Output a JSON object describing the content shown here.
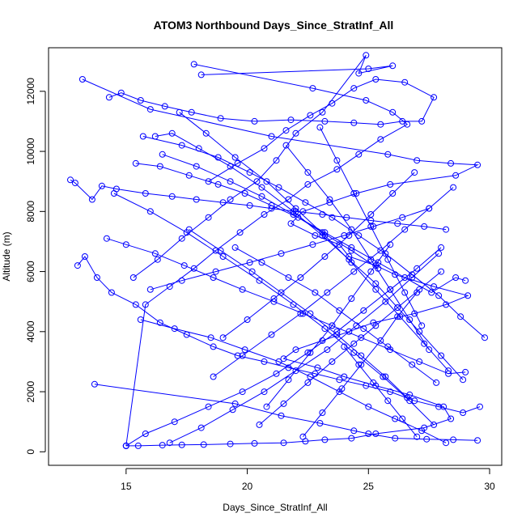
{
  "chart_data": {
    "type": "line",
    "title": "ATOM3 Northbound Days_Since_StratInf_All",
    "xlabel": "Days_Since_StratInf_All",
    "ylabel": "Altitude (m)",
    "xlim": [
      11.8,
      30.5
    ],
    "ylim": [
      -450,
      13450
    ],
    "xticks": [
      15,
      20,
      25,
      30
    ],
    "yticks": [
      0,
      2000,
      4000,
      6000,
      8000,
      10000,
      12000
    ],
    "grid": false,
    "legend": "none",
    "color": "#0000ff",
    "marker": "open-circle",
    "series": [
      {
        "x": [
          13.2,
          16.0,
          21.0,
          25.8,
          27.0,
          28.4,
          29.5,
          28.6,
          25.9,
          24.5,
          23.4,
          22.3,
          21.8,
          22.8,
          23.8,
          24.2,
          25.3,
          26.1,
          27.7,
          29.1,
          28.2,
          26.9,
          25.2,
          24.2,
          23.1,
          22.0,
          21.5,
          22.9,
          24.0,
          25.3,
          26.7,
          28.1,
          28.4,
          27.3,
          25.3,
          24.3,
          23.2,
          22.4,
          21.5,
          20.3,
          19.3,
          18.2,
          17.3,
          16.5,
          15.5,
          15.0
        ],
        "y": [
          12400,
          11400,
          10500,
          9900,
          9700,
          9600,
          9550,
          9200,
          8900,
          8600,
          8300,
          8000,
          7600,
          7200,
          6900,
          6500,
          6200,
          5900,
          5500,
          5200,
          4900,
          4600,
          4300,
          4000,
          3700,
          3400,
          3100,
          2800,
          2500,
          2200,
          1900,
          1500,
          1100,
          800,
          600,
          450,
          400,
          350,
          300,
          280,
          260,
          240,
          230,
          220,
          200,
          200
        ]
      },
      {
        "x": [
          17.8,
          22.7,
          24.9,
          26.0,
          26.6,
          25.5,
          24.6,
          23.7,
          22.5,
          21.7,
          20.7,
          19.7,
          18.7,
          17.8,
          16.8,
          15.8,
          15.0
        ],
        "y": [
          12900,
          12100,
          11700,
          11300,
          10900,
          10400,
          9900,
          9400,
          8900,
          8400,
          7900,
          7300,
          6700,
          6100,
          5500,
          4900,
          200
        ]
      },
      {
        "x": [
          18.1,
          25.0,
          26.0,
          24.6,
          24.9,
          23.1,
          22.0,
          21.2,
          20.4,
          19.3,
          18.4,
          17.3,
          16.3,
          15.3
        ],
        "y": [
          12550,
          12750,
          12850,
          12600,
          13200,
          11300,
          10600,
          9700,
          9000,
          8400,
          7800,
          7100,
          6400,
          5800
        ]
      },
      {
        "x": [
          12.7,
          12.9,
          13.6,
          14.0,
          14.6,
          15.8,
          16.9,
          17.9,
          19.0,
          20.1,
          21.0,
          22.0,
          23.1,
          24.1,
          25.1,
          26.2,
          27.3,
          28.2
        ],
        "y": [
          9050,
          8950,
          8400,
          8850,
          8750,
          8600,
          8500,
          8400,
          8300,
          8200,
          8100,
          8000,
          7900,
          7800,
          7700,
          7600,
          7500,
          7400
        ]
      },
      {
        "x": [
          13.7,
          19.5,
          21.4,
          23.0,
          24.4,
          25.0,
          26.1,
          27.4,
          28.5,
          29.5
        ],
        "y": [
          2250,
          1600,
          1200,
          950,
          700,
          600,
          450,
          420,
          400,
          380
        ]
      },
      {
        "x": [
          14.3,
          14.8,
          15.6,
          16.6,
          17.7,
          18.9,
          20.3,
          21.8,
          23.2,
          24.4,
          25.5,
          26.4,
          27.2,
          27.7,
          26.5,
          25.3,
          24.4,
          23.5,
          22.6,
          21.6,
          20.7,
          19.6,
          18.4
        ],
        "y": [
          11800,
          11950,
          11700,
          11500,
          11300,
          11100,
          11000,
          11050,
          11000,
          10950,
          10900,
          11000,
          11000,
          11800,
          12300,
          12400,
          12100,
          11600,
          11200,
          10700,
          10100,
          9600,
          9000
        ]
      },
      {
        "x": [
          13.0,
          13.3,
          13.8,
          14.4,
          15.4,
          16.4,
          17.5,
          18.6,
          19.6,
          20.7,
          21.7,
          22.8,
          23.8,
          24.9,
          25.9,
          26.9,
          27.9,
          28.9,
          29.6
        ],
        "y": [
          6200,
          6500,
          5800,
          5300,
          4900,
          4300,
          3900,
          3500,
          3200,
          3000,
          2800,
          2600,
          2400,
          2200,
          2000,
          1700,
          1500,
          1300,
          1500
        ]
      },
      {
        "x": [
          15.7,
          17.3,
          18.8,
          20.1,
          21.3,
          22.4,
          23.5,
          24.6,
          25.7,
          26.8,
          27.9,
          28.8,
          29.8
        ],
        "y": [
          10500,
          10200,
          9800,
          9300,
          8800,
          8300,
          7800,
          7200,
          6600,
          5900,
          5200,
          4500,
          3800
        ]
      },
      {
        "x": [
          14.2,
          15.0,
          16.2,
          17.4,
          18.6,
          19.8,
          21.1,
          22.3,
          23.5,
          24.7,
          25.9,
          27.1,
          28.3,
          29.0
        ],
        "y": [
          7100,
          6900,
          6600,
          6200,
          5800,
          5400,
          5000,
          4600,
          4200,
          3800,
          3400,
          3000,
          2600,
          2650
        ]
      },
      {
        "x": [
          15.4,
          16.4,
          17.6,
          18.8,
          19.9,
          21.0,
          22.1,
          23.2,
          24.3,
          25.4,
          26.5,
          27.6,
          28.6,
          29.0
        ],
        "y": [
          9600,
          9500,
          9200,
          8900,
          8600,
          8200,
          7800,
          7300,
          6800,
          6300,
          5800,
          5300,
          5800,
          5700
        ]
      },
      {
        "x": [
          16.2,
          16.9,
          18.0,
          19.3,
          20.6,
          21.9,
          23.1,
          24.2,
          25.3,
          26.2,
          27.1,
          28.0,
          28.9
        ],
        "y": [
          10500,
          10600,
          10100,
          9500,
          8800,
          8000,
          7200,
          6400,
          5600,
          4800,
          4000,
          3200,
          2400
        ]
      },
      {
        "x": [
          15.0,
          15.8,
          17.0,
          18.4,
          19.8,
          21.2,
          22.5,
          23.7,
          24.8,
          25.9,
          27.0,
          28.0
        ],
        "y": [
          200,
          600,
          1000,
          1500,
          2000,
          2600,
          3300,
          4000,
          4700,
          5400,
          6100,
          6800
        ]
      },
      {
        "x": [
          16.8,
          18.1,
          19.4,
          20.7,
          22.0,
          23.3,
          24.5,
          25.7,
          26.8,
          27.9
        ],
        "y": [
          300,
          800,
          1400,
          2000,
          2700,
          3400,
          4200,
          5000,
          5800,
          6600
        ]
      },
      {
        "x": [
          15.6,
          17.0,
          18.5,
          19.9,
          21.3,
          22.6,
          23.8,
          25.0,
          26.1,
          27.2,
          28.2
        ],
        "y": [
          4400,
          4100,
          3800,
          3400,
          3000,
          2500,
          2000,
          1500,
          1100,
          700,
          300
        ]
      },
      {
        "x": [
          14.5,
          16.0,
          17.5,
          19.0,
          20.5,
          21.9,
          23.2,
          24.4,
          25.6,
          26.7,
          27.7
        ],
        "y": [
          8600,
          8000,
          7300,
          6500,
          5700,
          4900,
          4100,
          3300,
          2500,
          1700,
          900
        ]
      },
      {
        "x": [
          17.2,
          18.3,
          19.5,
          20.8,
          22.0,
          23.2,
          24.3,
          25.3,
          26.3,
          27.3,
          28.3
        ],
        "y": [
          11300,
          10600,
          9800,
          9000,
          8100,
          7200,
          6300,
          5400,
          4500,
          3600,
          2700
        ]
      },
      {
        "x": [
          16.0,
          17.3,
          18.7,
          20.1,
          21.4,
          22.7,
          24.0,
          25.2,
          26.4,
          27.5
        ],
        "y": [
          5400,
          5700,
          6000,
          6300,
          6600,
          6900,
          7200,
          7500,
          7800,
          8100
        ]
      },
      {
        "x": [
          18.6,
          19.8,
          21.0,
          22.2,
          23.3,
          24.4,
          25.5,
          26.5,
          27.5,
          28.5
        ],
        "y": [
          2500,
          3200,
          3900,
          4600,
          5300,
          6000,
          6700,
          7400,
          8100,
          8800
        ]
      },
      {
        "x": [
          19.5,
          20.6,
          21.7,
          22.8,
          23.8,
          24.8,
          25.8,
          26.8,
          27.8
        ],
        "y": [
          6800,
          6300,
          5800,
          5300,
          4700,
          4100,
          3500,
          2900,
          2300
        ]
      },
      {
        "x": [
          20.5,
          21.5,
          22.5,
          23.5,
          24.4,
          25.3,
          26.2,
          27.1,
          28.0
        ],
        "y": [
          900,
          1600,
          2300,
          3000,
          3600,
          4200,
          4800,
          5400,
          6000
        ]
      },
      {
        "x": [
          17.6,
          18.9,
          20.2,
          21.4,
          22.6,
          23.7,
          24.7,
          25.7,
          26.6
        ],
        "y": [
          7400,
          6700,
          6000,
          5300,
          4600,
          3900,
          3200,
          2500,
          1800
        ]
      },
      {
        "x": [
          21.6,
          22.5,
          23.4,
          24.3,
          25.1,
          25.9,
          26.7,
          27.5
        ],
        "y": [
          10200,
          9300,
          8400,
          7400,
          6400,
          5400,
          4400,
          3400
        ]
      },
      {
        "x": [
          19.0,
          20.0,
          21.1,
          22.2,
          23.2,
          24.2,
          25.1,
          26.0,
          26.9
        ],
        "y": [
          3800,
          4400,
          5100,
          5800,
          6500,
          7200,
          7900,
          8600,
          9300
        ]
      },
      {
        "x": [
          22.3,
          23.1,
          23.9,
          24.7,
          25.5,
          26.2,
          27.0
        ],
        "y": [
          500,
          1300,
          2100,
          2900,
          3700,
          4500,
          5300
        ]
      },
      {
        "x": [
          16.5,
          17.9,
          19.3,
          20.6,
          21.9,
          23.1,
          24.3,
          25.4
        ],
        "y": [
          9900,
          9500,
          9000,
          8500,
          7900,
          7300,
          6700,
          6100
        ]
      },
      {
        "x": [
          23.0,
          23.7,
          24.4,
          25.1,
          25.8,
          26.5,
          27.2
        ],
        "y": [
          10800,
          9700,
          8600,
          7500,
          6400,
          5300,
          4200
        ]
      },
      {
        "x": [
          20.8,
          21.7,
          22.6,
          23.5,
          24.3,
          25.1,
          25.9
        ],
        "y": [
          1500,
          2400,
          3300,
          4200,
          5100,
          6000,
          6900
        ]
      },
      {
        "x": [
          24.0,
          24.6,
          25.2,
          25.8,
          26.4,
          27.0
        ],
        "y": [
          3500,
          2900,
          2300,
          1700,
          1100,
          500
        ]
      }
    ]
  }
}
